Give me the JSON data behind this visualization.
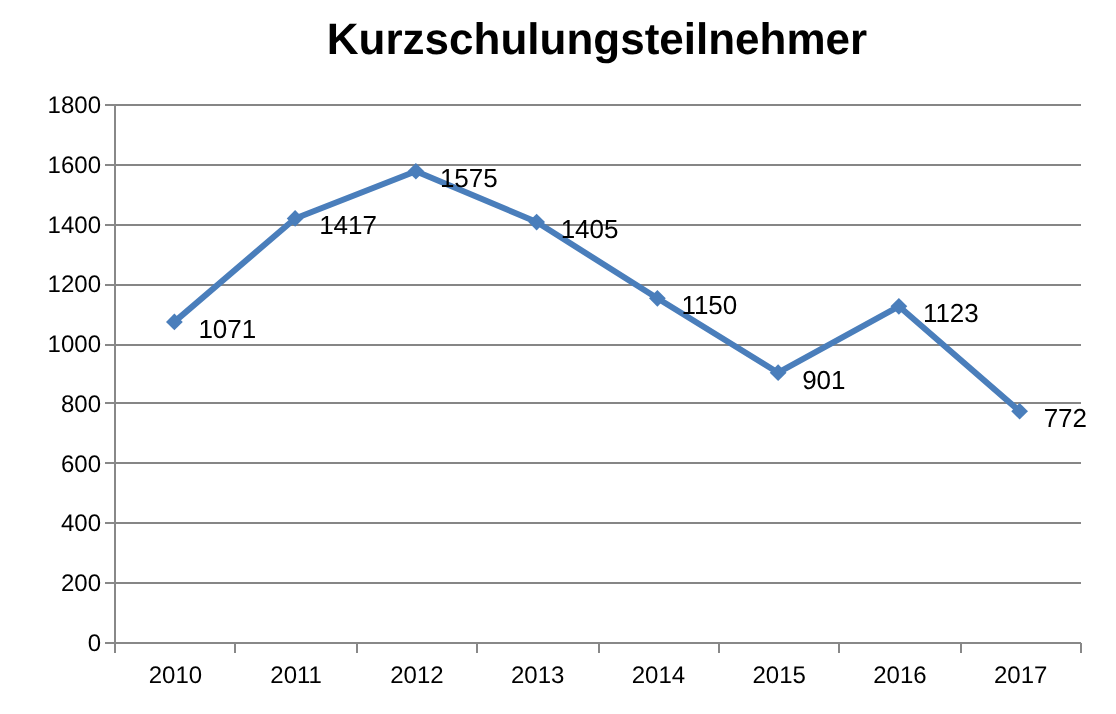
{
  "chart_data": {
    "type": "line",
    "title": "Kurzschulungsteilnehmer",
    "categories": [
      "2010",
      "2011",
      "2012",
      "2013",
      "2014",
      "2015",
      "2016",
      "2017"
    ],
    "series": [
      {
        "color": "#4a7ebb",
        "values": [
          1071,
          1417,
          1575,
          1405,
          1150,
          901,
          1123,
          772
        ]
      }
    ],
    "ylim": [
      0,
      1800
    ],
    "yticks": [
      0,
      200,
      400,
      600,
      800,
      1000,
      1200,
      1400,
      1600,
      1800
    ],
    "grid": "y",
    "marker": "diamond",
    "data_labels": true
  }
}
